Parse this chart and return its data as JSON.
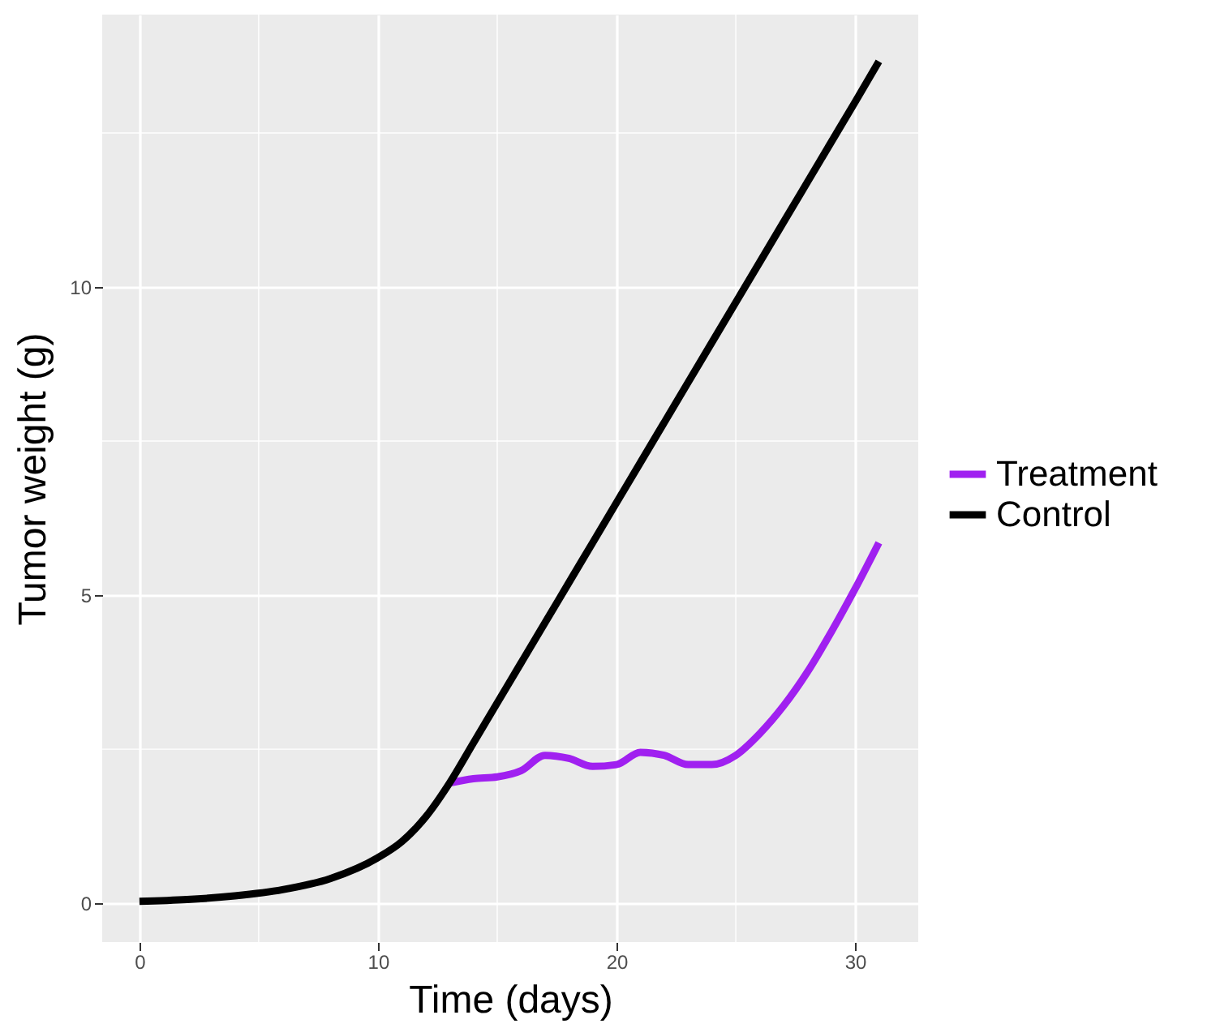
{
  "chart_data": {
    "type": "line",
    "xlabel": "Time (days)",
    "ylabel": "Tumor weight (g)",
    "x": [
      0,
      2,
      4,
      6,
      8,
      10,
      11,
      12,
      13,
      14,
      15,
      16,
      17,
      18,
      19,
      20,
      21,
      22,
      23,
      24,
      25,
      26,
      27,
      28,
      29,
      30,
      31
    ],
    "series": [
      {
        "name": "Treatment",
        "color": "#a020f0",
        "values": [
          null,
          null,
          null,
          null,
          null,
          null,
          null,
          null,
          1.95,
          2.02,
          2.05,
          2.15,
          2.4,
          2.35,
          2.22,
          2.25,
          2.45,
          2.4,
          2.25,
          2.25,
          2.4,
          2.75,
          3.2,
          3.75,
          4.4,
          5.1,
          5.85
        ]
      },
      {
        "name": "Control",
        "color": "#000000",
        "values": [
          0.03,
          0.06,
          0.12,
          0.22,
          0.4,
          0.74,
          1.0,
          1.4,
          1.95,
          2.6,
          3.25,
          3.9,
          4.55,
          5.2,
          5.85,
          6.5,
          7.15,
          7.8,
          8.45,
          9.1,
          9.75,
          10.4,
          11.05,
          11.7,
          12.35,
          13.0,
          13.66
        ]
      }
    ],
    "xlim": [
      -1.56,
      32.65
    ],
    "ylim": [
      -0.63,
      14.42
    ],
    "xticks": [
      0,
      {
        "value": 5,
        "label": null
      },
      10,
      {
        "value": 15,
        "label": null
      },
      20,
      {
        "value": 25,
        "label": null
      },
      30
    ],
    "yticks": [
      0,
      {
        "value": 2.5,
        "label": null
      },
      5,
      {
        "value": 7.5,
        "label": null
      },
      10,
      {
        "value": 12.5,
        "label": null
      }
    ],
    "grid": true,
    "legend": "right",
    "line_style": "solid"
  }
}
